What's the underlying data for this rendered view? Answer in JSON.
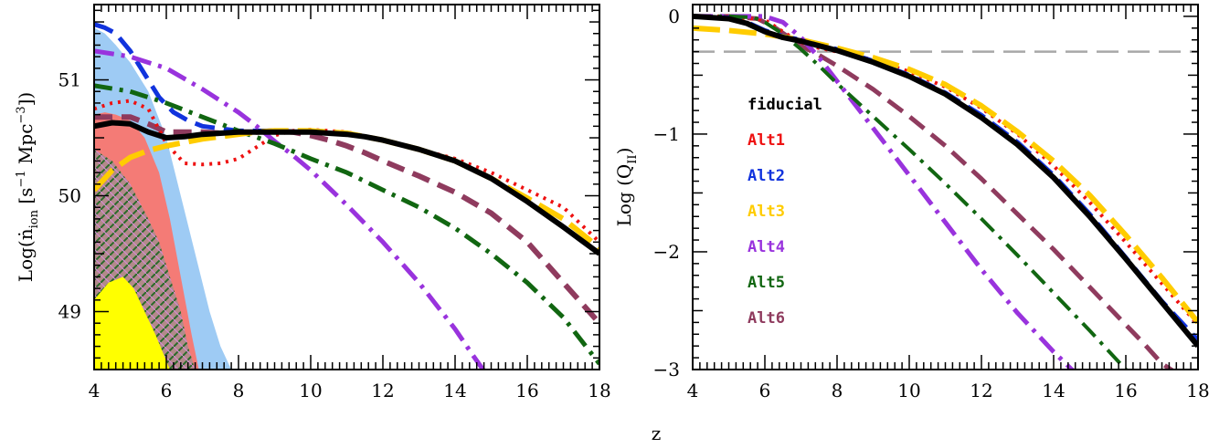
{
  "figure": {
    "shared_xlabel": "z"
  },
  "chart_data": [
    {
      "type": "line",
      "title": "",
      "xlabel": "",
      "ylabel": "Log(ṅ_ion [s⁻¹ Mpc⁻³])",
      "ylabel_parts": {
        "main": "Log(ṅ",
        "sub": "ion",
        "units": " [s",
        "exp1": "−1",
        "mid": " Mpc",
        "exp2": "−3",
        "close": "])"
      },
      "xlim": [
        4,
        18
      ],
      "ylim": [
        48.5,
        51.65
      ],
      "x_ticks": [
        4,
        6,
        8,
        10,
        12,
        14,
        16,
        18
      ],
      "y_ticks": [
        49,
        50,
        51
      ],
      "grid": false,
      "bands": [
        {
          "name": "band-blue",
          "color": "#9ecbf4",
          "x": [
            4,
            4.3,
            4.6,
            5.0,
            5.5,
            6.0,
            6.4,
            6.8,
            7.2,
            7.5,
            7.8
          ],
          "y": [
            51.45,
            51.4,
            51.3,
            51.15,
            50.9,
            50.5,
            50.0,
            49.5,
            49.0,
            48.7,
            48.5
          ]
        },
        {
          "name": "band-red",
          "color": "#f47b76",
          "x": [
            4,
            4.3,
            4.6,
            5.0,
            5.4,
            5.8,
            6.1,
            6.4,
            6.7,
            6.9
          ],
          "y": [
            50.7,
            50.72,
            50.7,
            50.65,
            50.5,
            50.2,
            49.8,
            49.3,
            48.8,
            48.5
          ]
        },
        {
          "name": "band-hatched",
          "color": "#b28a8a",
          "x": [
            4,
            4.5,
            5.0,
            5.5,
            5.8,
            6.1,
            6.4,
            6.6,
            6.8
          ],
          "y": [
            50.4,
            50.3,
            50.1,
            49.8,
            49.6,
            49.3,
            49.0,
            48.7,
            48.5
          ]
        },
        {
          "name": "band-yellow",
          "color": "#ffff00",
          "x": [
            4,
            4.4,
            4.8,
            5.1,
            5.4,
            5.7,
            5.9,
            6.1
          ],
          "y": [
            49.1,
            49.25,
            49.3,
            49.2,
            49.0,
            48.8,
            48.65,
            48.5
          ]
        }
      ],
      "series": [
        {
          "name": "",
          "color": "#8f3b5e",
          "dash": "20,10",
          "width": 6,
          "x": [
            4,
            4.5,
            5.0,
            5.5,
            6.0,
            6.5,
            7.0,
            7.5,
            8.0,
            8.5,
            9.0,
            9.5,
            10,
            10.5,
            11,
            11.5,
            12,
            13,
            14,
            15,
            16,
            17,
            18
          ],
          "y": [
            50.68,
            50.68,
            50.68,
            50.62,
            50.55,
            50.55,
            50.55,
            50.54,
            50.54,
            50.55,
            50.56,
            50.55,
            50.52,
            50.48,
            50.43,
            50.37,
            50.3,
            50.17,
            50.03,
            49.85,
            49.6,
            49.25,
            48.9
          ]
        },
        {
          "name": "",
          "color": "#ee1111",
          "dash": "3,6",
          "width": 4,
          "x": [
            4,
            4.5,
            5.0,
            5.5,
            6.0,
            6.5,
            7.0,
            7.5,
            8.0,
            8.5,
            9.0,
            9.5,
            10,
            11,
            12,
            13,
            14,
            15,
            16,
            17,
            18
          ],
          "y": [
            50.75,
            50.8,
            50.82,
            50.75,
            50.45,
            50.28,
            50.27,
            50.28,
            50.32,
            50.42,
            50.52,
            50.56,
            50.57,
            50.55,
            50.48,
            50.4,
            50.32,
            50.2,
            50.05,
            49.9,
            49.6
          ]
        },
        {
          "name": "",
          "color": "#1133dd",
          "dash": "22,10",
          "width": 5,
          "x": [
            4,
            4.3,
            4.6,
            5.0,
            5.4,
            5.8,
            6.2,
            6.6,
            7.0,
            7.5,
            8.0,
            8.5,
            9.0
          ],
          "y": [
            51.48,
            51.45,
            51.4,
            51.25,
            51.05,
            50.85,
            50.72,
            50.65,
            50.6,
            50.58,
            50.56,
            50.56,
            50.56
          ]
        },
        {
          "name": "",
          "color": "#9933dd",
          "dash": "22,8,4,8",
          "width": 5,
          "x": [
            4,
            5.0,
            6.0,
            7.0,
            8.0,
            8.5,
            9.0,
            9.5,
            10,
            11,
            12,
            13,
            14,
            14.5,
            15.0
          ],
          "y": [
            51.25,
            51.2,
            51.1,
            50.92,
            50.72,
            50.6,
            50.47,
            50.35,
            50.22,
            49.92,
            49.6,
            49.25,
            48.85,
            48.62,
            48.4
          ]
        },
        {
          "name": "",
          "color": "#116611",
          "dash": "20,8,4,8",
          "width": 5,
          "x": [
            4,
            5.0,
            6.0,
            7.0,
            8.0,
            9.0,
            10,
            11,
            12,
            13,
            14,
            15,
            16,
            17,
            18
          ],
          "y": [
            50.95,
            50.9,
            50.8,
            50.68,
            50.56,
            50.45,
            50.32,
            50.2,
            50.05,
            49.9,
            49.72,
            49.5,
            49.25,
            48.95,
            48.55
          ]
        },
        {
          "name": "",
          "color": "#ffcc00",
          "dash": "30,10",
          "width": 6,
          "x": [
            4,
            4.5,
            5.0,
            5.5,
            6.0,
            6.5,
            7.0,
            7.5,
            8.0,
            8.5,
            9.0,
            10,
            11,
            12,
            13,
            14,
            15,
            16,
            17,
            18
          ],
          "y": [
            50.05,
            50.22,
            50.33,
            50.39,
            50.43,
            50.46,
            50.49,
            50.51,
            50.53,
            50.55,
            50.56,
            50.56,
            50.54,
            50.48,
            50.4,
            50.3,
            50.15,
            49.98,
            49.8,
            49.55
          ]
        },
        {
          "name": "",
          "color": "#000000",
          "dash": "",
          "width": 6,
          "x": [
            4,
            4.5,
            5.0,
            5.5,
            6.0,
            6.5,
            7.0,
            7.5,
            8.0,
            8.5,
            9.0,
            9.5,
            10,
            10.5,
            11,
            11.5,
            12,
            13,
            14,
            15,
            16,
            17,
            18
          ],
          "y": [
            50.6,
            50.63,
            50.62,
            50.55,
            50.5,
            50.51,
            50.53,
            50.54,
            50.55,
            50.55,
            50.55,
            50.55,
            50.55,
            50.54,
            50.53,
            50.51,
            50.48,
            50.4,
            50.3,
            50.15,
            49.95,
            49.73,
            49.5
          ]
        }
      ]
    },
    {
      "type": "line",
      "title": "",
      "xlabel": "",
      "ylabel": "Log (Q_II)",
      "ylabel_parts": {
        "main": "Log (Q",
        "sub": "II",
        "close": ")"
      },
      "xlim": [
        4,
        18
      ],
      "ylim": [
        -3.0,
        0.1
      ],
      "x_ticks": [
        4,
        6,
        8,
        10,
        12,
        14,
        16,
        18
      ],
      "y_ticks": [
        -3,
        -2,
        -1,
        0
      ],
      "grid": false,
      "reference_line": {
        "y": -0.3,
        "color": "#a8a8a8",
        "dash": "24,10"
      },
      "legend": {
        "placement": "left-middle",
        "entries": [
          {
            "label": "fiducial",
            "color": "#000000"
          },
          {
            "label": "Alt1",
            "color": "#ee1111"
          },
          {
            "label": "Alt2",
            "color": "#1133dd"
          },
          {
            "label": "Alt3",
            "color": "#ffcc00"
          },
          {
            "label": "Alt4",
            "color": "#9933dd"
          },
          {
            "label": "Alt5",
            "color": "#116611"
          },
          {
            "label": "Alt6",
            "color": "#8f3b5e"
          }
        ]
      },
      "series": [
        {
          "name": "Alt6",
          "color": "#8f3b5e",
          "dash": "20,10",
          "width": 5,
          "x": [
            4,
            5.0,
            5.8,
            6.3,
            7.0,
            7.5,
            8.0,
            9.0,
            10,
            11,
            12,
            13,
            14,
            15,
            16,
            16.5,
            17.0,
            17.5
          ],
          "y": [
            0,
            0,
            -0.02,
            -0.1,
            -0.25,
            -0.33,
            -0.42,
            -0.62,
            -0.85,
            -1.1,
            -1.38,
            -1.68,
            -1.98,
            -2.3,
            -2.62,
            -2.78,
            -2.95,
            -3.05
          ]
        },
        {
          "name": "Alt1",
          "color": "#ee1111",
          "dash": "3,6",
          "width": 4,
          "x": [
            4,
            5.0,
            6.0,
            6.6,
            7.0,
            7.5,
            8.0,
            9.0,
            10,
            11,
            12,
            13,
            14,
            15,
            16,
            17,
            18
          ],
          "y": [
            0,
            0,
            -0.03,
            -0.15,
            -0.22,
            -0.27,
            -0.3,
            -0.37,
            -0.47,
            -0.6,
            -0.78,
            -1.0,
            -1.27,
            -1.58,
            -1.92,
            -2.27,
            -2.62
          ]
        },
        {
          "name": "Alt2",
          "color": "#1133dd",
          "dash": "22,10",
          "width": 5,
          "x": [
            4,
            5.0,
            5.5,
            6.0,
            6.5,
            7.0,
            7.5,
            8.0,
            9.0,
            10,
            11,
            12,
            13,
            14,
            15,
            16,
            17,
            18
          ],
          "y": [
            0,
            -0.01,
            -0.05,
            -0.12,
            -0.17,
            -0.2,
            -0.24,
            -0.28,
            -0.38,
            -0.5,
            -0.65,
            -0.84,
            -1.07,
            -1.35,
            -1.68,
            -2.05,
            -2.42,
            -2.75
          ]
        },
        {
          "name": "Alt3",
          "color": "#ffcc00",
          "dash": "30,10",
          "width": 6,
          "x": [
            4,
            5.0,
            6.0,
            7.0,
            8.0,
            9.0,
            10,
            11,
            12,
            13,
            14,
            15,
            16,
            17,
            18
          ],
          "y": [
            -0.1,
            -0.12,
            -0.15,
            -0.2,
            -0.27,
            -0.35,
            -0.45,
            -0.58,
            -0.76,
            -0.98,
            -1.23,
            -1.52,
            -1.86,
            -2.22,
            -2.6
          ]
        },
        {
          "name": "Alt4",
          "color": "#9933dd",
          "dash": "22,8,4,8",
          "width": 5,
          "x": [
            4,
            5.0,
            6.0,
            6.5,
            7.0,
            7.5,
            8.0,
            8.5,
            9.0,
            10,
            11,
            12,
            13,
            14,
            14.5,
            15.0
          ],
          "y": [
            0,
            0,
            0,
            -0.05,
            -0.18,
            -0.35,
            -0.55,
            -0.75,
            -0.95,
            -1.35,
            -1.75,
            -2.15,
            -2.52,
            -2.85,
            -3.0,
            -3.1
          ]
        },
        {
          "name": "Alt5",
          "color": "#116611",
          "dash": "20,8,4,8",
          "width": 4,
          "x": [
            4,
            5.0,
            5.7,
            6.0,
            6.5,
            7.0,
            7.5,
            8.0,
            9.0,
            10,
            11,
            12,
            13,
            14,
            15,
            16,
            16.5
          ],
          "y": [
            0,
            0,
            -0.01,
            -0.05,
            -0.15,
            -0.28,
            -0.42,
            -0.57,
            -0.85,
            -1.13,
            -1.42,
            -1.72,
            -2.03,
            -2.35,
            -2.67,
            -3.0,
            -3.1
          ]
        },
        {
          "name": "fiducial",
          "color": "#000000",
          "dash": "",
          "width": 6,
          "x": [
            4,
            5.0,
            5.5,
            6.0,
            6.5,
            7.0,
            7.5,
            8.0,
            9.0,
            10,
            11,
            12,
            13,
            14,
            15,
            16,
            17,
            18
          ],
          "y": [
            0,
            -0.02,
            -0.06,
            -0.13,
            -0.18,
            -0.21,
            -0.25,
            -0.29,
            -0.39,
            -0.51,
            -0.66,
            -0.86,
            -1.09,
            -1.37,
            -1.7,
            -2.06,
            -2.43,
            -2.8
          ]
        }
      ]
    }
  ]
}
